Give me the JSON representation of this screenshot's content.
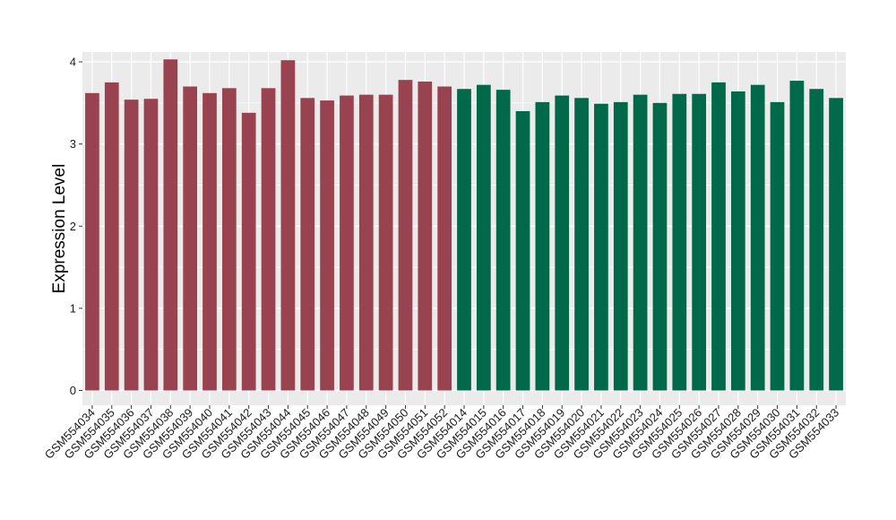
{
  "chart_data": {
    "type": "bar",
    "ylabel": "Expression Level",
    "xlabel": "",
    "title": "",
    "ylim": [
      -0.18,
      4.12
    ],
    "yticks": [
      0,
      1,
      2,
      3,
      4
    ],
    "grid": true,
    "colors": {
      "group_a": "#9a4350",
      "group_b": "#00694a",
      "panel": "#ebebeb",
      "grid": "#ffffff"
    },
    "categories": [
      "GSM554034",
      "GSM554035",
      "GSM554036",
      "GSM554037",
      "GSM554038",
      "GSM554039",
      "GSM554040",
      "GSM554041",
      "GSM554042",
      "GSM554043",
      "GSM554044",
      "GSM554045",
      "GSM554046",
      "GSM554047",
      "GSM554048",
      "GSM554049",
      "GSM554050",
      "GSM554051",
      "GSM554052",
      "GSM554014",
      "GSM554015",
      "GSM554016",
      "GSM554017",
      "GSM554018",
      "GSM554019",
      "GSM554020",
      "GSM554021",
      "GSM554022",
      "GSM554023",
      "GSM554024",
      "GSM554025",
      "GSM554026",
      "GSM554027",
      "GSM554028",
      "GSM554029",
      "GSM554030",
      "GSM554031",
      "GSM554032",
      "GSM554033"
    ],
    "values": [
      3.62,
      3.75,
      3.54,
      3.55,
      4.03,
      3.7,
      3.62,
      3.68,
      3.38,
      3.68,
      4.02,
      3.56,
      3.53,
      3.59,
      3.6,
      3.6,
      3.78,
      3.76,
      3.7,
      3.67,
      3.72,
      3.66,
      3.4,
      3.51,
      3.59,
      3.56,
      3.49,
      3.51,
      3.6,
      3.5,
      3.61,
      3.61,
      3.75,
      3.64,
      3.72,
      3.51,
      3.77,
      3.67,
      3.56
    ],
    "groups": [
      "a",
      "a",
      "a",
      "a",
      "a",
      "a",
      "a",
      "a",
      "a",
      "a",
      "a",
      "a",
      "a",
      "a",
      "a",
      "a",
      "a",
      "a",
      "a",
      "b",
      "b",
      "b",
      "b",
      "b",
      "b",
      "b",
      "b",
      "b",
      "b",
      "b",
      "b",
      "b",
      "b",
      "b",
      "b",
      "b",
      "b",
      "b",
      "b"
    ]
  }
}
